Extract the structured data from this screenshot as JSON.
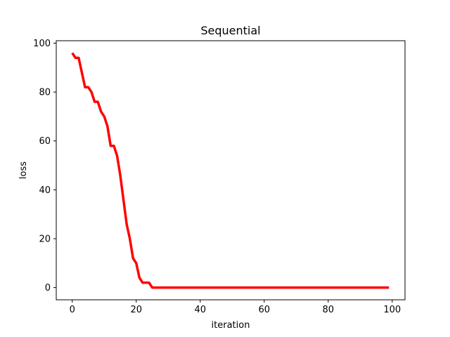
{
  "chart_data": {
    "type": "line",
    "title": "Sequential",
    "xlabel": "iteration",
    "ylabel": "loss",
    "xlim": [
      -5,
      104
    ],
    "ylim": [
      -5,
      101
    ],
    "xticks": [
      0,
      20,
      40,
      60,
      80,
      100
    ],
    "yticks": [
      0,
      20,
      40,
      60,
      80,
      100
    ],
    "grid": false,
    "line_color": "#ff0000",
    "series": [
      {
        "x": [
          0,
          1,
          2,
          3,
          4,
          5,
          6,
          7,
          8,
          9,
          10,
          11,
          12,
          13,
          14,
          15,
          16,
          17,
          18,
          19,
          20,
          21,
          22,
          23,
          24,
          25,
          26,
          99
        ],
        "y": [
          96,
          94,
          94,
          88,
          82,
          82,
          80,
          76,
          76,
          72,
          70,
          66,
          58,
          58,
          54,
          46,
          36,
          26,
          20,
          12,
          10,
          4,
          2,
          2,
          2,
          0,
          0,
          0
        ]
      }
    ]
  }
}
